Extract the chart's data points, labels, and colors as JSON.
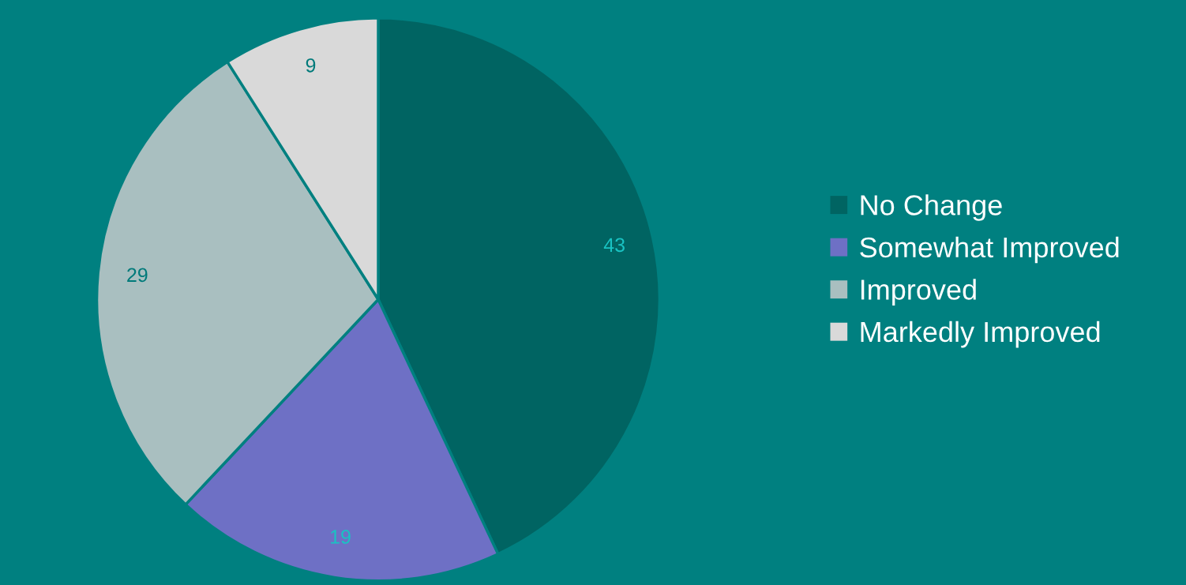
{
  "chart_data": {
    "type": "pie",
    "categories": [
      "No Change",
      "Somewhat Improved",
      "Improved",
      "Markedly Improved"
    ],
    "values": [
      43,
      19,
      29,
      9
    ],
    "colors": [
      "#006462",
      "#6e70c5",
      "#a9bfc0",
      "#d9d9d9"
    ],
    "data_labels": true,
    "legend": "right"
  }
}
